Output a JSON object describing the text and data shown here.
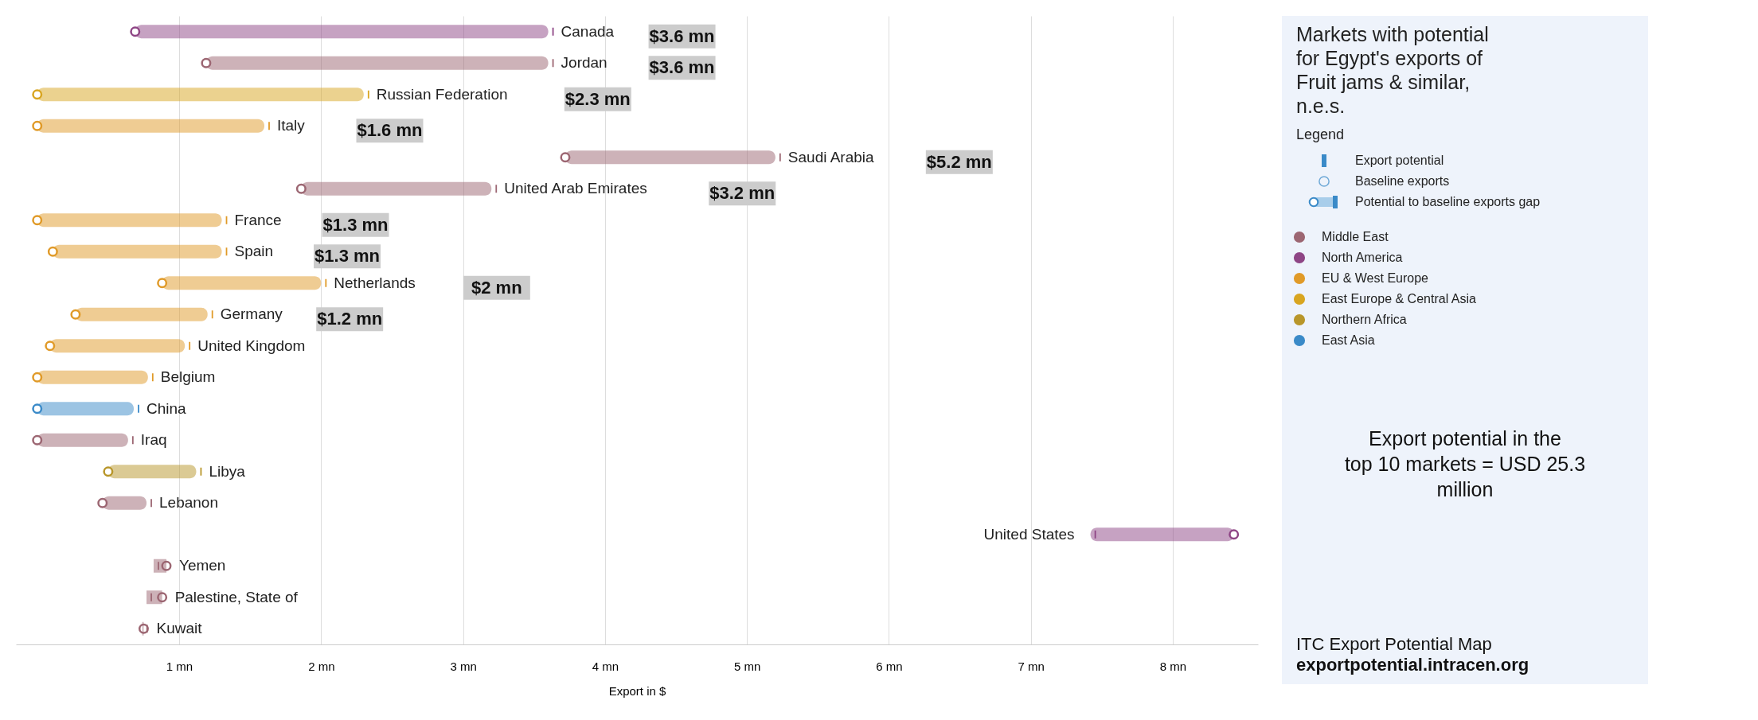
{
  "chart_data": {
    "type": "bar",
    "orientation": "horizontal",
    "title": "Markets with potential for Egypt's exports of Fruit jams & similar, n.e.s.",
    "legend_title": "Legend",
    "xlabel": "Export in $",
    "categories": [
      "Canada",
      "Jordan",
      "Russian Federation",
      "Italy",
      "Saudi Arabia",
      "United Arab Emirates",
      "France",
      "Spain",
      "Netherlands",
      "Germany",
      "United Kingdom",
      "Belgium",
      "China",
      "Iraq",
      "Libya",
      "Lebanon",
      "United States",
      "Yemen",
      "Palestine, State of",
      "Kuwait"
    ],
    "series": [
      {
        "name": "Middle East",
        "color": "#9c6672",
        "base": [
          null,
          1.19,
          null,
          null,
          3.72,
          1.86,
          null,
          null,
          null,
          null,
          null,
          null,
          null,
          0,
          null,
          0.46,
          null,
          0.91,
          0.88,
          0.75
        ],
        "values": [
          null,
          2.41,
          null,
          null,
          1.48,
          1.34,
          null,
          null,
          null,
          null,
          null,
          null,
          null,
          0.64,
          null,
          0.31,
          null,
          -0.09,
          -0.11,
          -0.01
        ]
      },
      {
        "name": "North America",
        "color": "#8e4585",
        "base": [
          0.69,
          null,
          null,
          null,
          null,
          null,
          null,
          null,
          null,
          null,
          null,
          null,
          null,
          null,
          null,
          null,
          8.43,
          null,
          null,
          null
        ],
        "values": [
          2.91,
          null,
          null,
          null,
          null,
          null,
          null,
          null,
          null,
          null,
          null,
          null,
          null,
          null,
          null,
          null,
          -1.01,
          null,
          null,
          null
        ]
      },
      {
        "name": "EU & West Europe",
        "color": "#e09a28",
        "base": [
          null,
          null,
          null,
          0,
          null,
          null,
          0,
          0.11,
          0.88,
          0.27,
          0.09,
          0,
          null,
          null,
          null,
          null,
          null,
          null,
          null,
          null
        ],
        "values": [
          null,
          null,
          null,
          1.6,
          null,
          null,
          1.3,
          1.19,
          1.12,
          0.93,
          0.95,
          0.78,
          null,
          null,
          null,
          null,
          null,
          null,
          null,
          null
        ]
      },
      {
        "name": "East Europe & Central Asia",
        "color": "#d8a520",
        "base": [
          null,
          null,
          0,
          null,
          null,
          null,
          null,
          null,
          null,
          null,
          null,
          null,
          null,
          null,
          null,
          null,
          null,
          null,
          null,
          null
        ],
        "values": [
          null,
          null,
          2.3,
          null,
          null,
          null,
          null,
          null,
          null,
          null,
          null,
          null,
          null,
          null,
          null,
          null,
          null,
          null,
          null,
          null
        ]
      },
      {
        "name": "Northern Africa",
        "color": "#b8962a",
        "base": [
          null,
          null,
          null,
          null,
          null,
          null,
          null,
          null,
          null,
          null,
          null,
          null,
          null,
          null,
          0.5,
          null,
          null,
          null,
          null,
          null
        ],
        "values": [
          null,
          null,
          null,
          null,
          null,
          null,
          null,
          null,
          null,
          null,
          null,
          null,
          null,
          null,
          0.62,
          null,
          null,
          null,
          null,
          null
        ]
      },
      {
        "name": "East Asia",
        "color": "#3a8ac8",
        "base": [
          null,
          null,
          null,
          null,
          null,
          null,
          null,
          null,
          null,
          null,
          null,
          null,
          0,
          null,
          null,
          null,
          null,
          null,
          null,
          null
        ],
        "values": [
          null,
          null,
          null,
          null,
          null,
          null,
          null,
          null,
          null,
          null,
          null,
          null,
          0.68,
          null,
          null,
          null,
          null,
          null,
          null,
          null
        ]
      }
    ],
    "value_labels": [
      "$3.6 mn",
      "$3.6 mn",
      "$2.3 mn",
      "$1.6 mn",
      "$5.2 mn",
      "$3.2 mn",
      "$1.3 mn",
      "$1.3 mn",
      "$2 mn",
      "$1.2 mn",
      null,
      null,
      null,
      null,
      null,
      null,
      null,
      null,
      null,
      null
    ],
    "xlim": [
      -0.15,
      8.6
    ],
    "xticks": [
      {
        "value": 1,
        "label": "1 mn"
      },
      {
        "value": 2,
        "label": "2 mn"
      },
      {
        "value": 3,
        "label": "3 mn"
      },
      {
        "value": 4,
        "label": "4 mn"
      },
      {
        "value": 5,
        "label": "5 mn"
      },
      {
        "value": 6,
        "label": "6 mn"
      },
      {
        "value": 7,
        "label": "7 mn"
      },
      {
        "value": 8,
        "label": "8 mn"
      }
    ],
    "grid": "x",
    "marker": "circle",
    "tick_labels": "x",
    "legend": "right",
    "annotations": [
      "Export potential",
      "Baseline exports",
      "Potential to baseline exports gap",
      "Export potential in the top 10 markets = USD 25.3 million",
      "ITC Export Potential Map",
      "exportpotential.intracen.org"
    ]
  }
}
